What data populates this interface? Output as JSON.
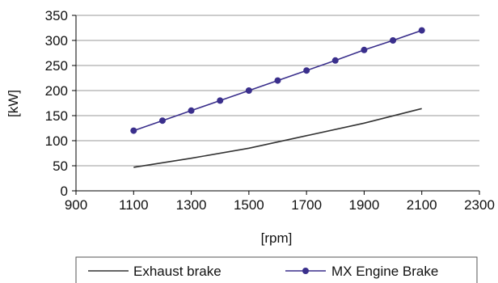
{
  "chart_data": {
    "type": "line",
    "title": "",
    "xlabel": "[rpm]",
    "ylabel": "[kW]",
    "xlim": [
      900,
      2300
    ],
    "ylim": [
      0,
      350
    ],
    "x_ticks": [
      "900",
      "1100",
      "1300",
      "1500",
      "1700",
      "1900",
      "2100",
      "2300"
    ],
    "y_ticks": [
      "0",
      "50",
      "100",
      "150",
      "200",
      "250",
      "300",
      "350"
    ],
    "grid": "horizontal",
    "legend_position": "bottom",
    "series": [
      {
        "name": "Exhaust brake",
        "color": "#333333",
        "markers": false,
        "x": [
          1100,
          1300,
          1500,
          1700,
          1900,
          2100
        ],
        "y": [
          47,
          65,
          85,
          110,
          135,
          164
        ]
      },
      {
        "name": "MX Engine Brake",
        "color": "#3a2f8c",
        "markers": true,
        "x": [
          1100,
          1200,
          1300,
          1400,
          1500,
          1600,
          1700,
          1800,
          1900,
          2000,
          2100
        ],
        "y": [
          120,
          140,
          160,
          180,
          200,
          220,
          240,
          260,
          281,
          300,
          320
        ]
      }
    ]
  }
}
